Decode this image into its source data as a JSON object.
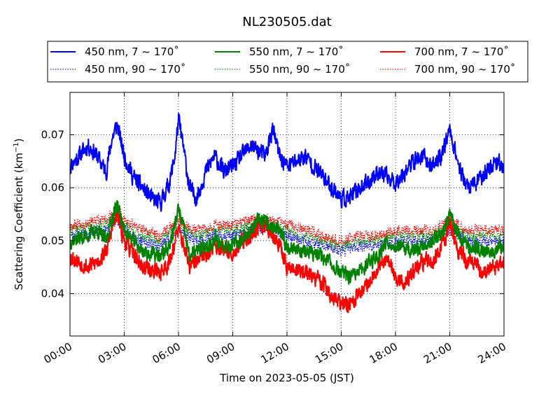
{
  "chart_data": {
    "type": "line",
    "title": "NL230505.dat",
    "xlabel": "Time on 2023-05-05 (JST)",
    "ylabel": "Scattering Coefficient (km",
    "ylabel_sup": "−1",
    "ylabel_close": ")",
    "xlim": [
      0,
      24
    ],
    "ylim": [
      0.032,
      0.078
    ],
    "x_ticks": [
      0,
      3,
      6,
      9,
      12,
      15,
      18,
      21,
      24
    ],
    "x_tick_labels": [
      "00:00",
      "03:00",
      "06:00",
      "09:00",
      "12:00",
      "15:00",
      "18:00",
      "21:00",
      "24:00"
    ],
    "y_ticks": [
      0.04,
      0.05,
      0.06,
      0.07
    ],
    "y_tick_labels": [
      "0.04",
      "0.05",
      "0.06",
      "0.07"
    ],
    "grid": true,
    "legend_placement": "top",
    "series": [
      {
        "name": "450 nm, 7 ~ 170˚",
        "color": "#0000ff",
        "style": "solid",
        "noise": 0.0018,
        "seed": 11,
        "x": [
          0,
          0.5,
          1,
          1.5,
          2,
          2.3,
          2.6,
          3,
          3.5,
          4,
          4.5,
          5,
          5.5,
          5.8,
          6,
          6.3,
          6.6,
          7,
          7.5,
          8,
          8.5,
          9,
          9.5,
          10,
          10.4,
          10.8,
          11.2,
          11.6,
          12,
          12.5,
          13,
          13.5,
          14,
          14.5,
          15,
          15.5,
          16,
          16.5,
          17,
          17.5,
          18,
          18.5,
          19,
          19.5,
          20,
          20.5,
          20.8,
          21,
          21.3,
          21.6,
          22,
          22.5,
          23,
          23.5,
          24
        ],
        "y": [
          0.064,
          0.066,
          0.068,
          0.066,
          0.063,
          0.069,
          0.072,
          0.066,
          0.062,
          0.06,
          0.058,
          0.057,
          0.061,
          0.066,
          0.073,
          0.067,
          0.06,
          0.058,
          0.063,
          0.066,
          0.063,
          0.064,
          0.066,
          0.068,
          0.067,
          0.066,
          0.071,
          0.066,
          0.064,
          0.065,
          0.066,
          0.064,
          0.062,
          0.06,
          0.058,
          0.058,
          0.06,
          0.061,
          0.063,
          0.062,
          0.061,
          0.063,
          0.065,
          0.066,
          0.064,
          0.066,
          0.069,
          0.071,
          0.067,
          0.063,
          0.06,
          0.061,
          0.063,
          0.065,
          0.064
        ]
      },
      {
        "name": "450 nm, 90 ~ 170˚",
        "color": "#0000ff",
        "style": "dotted",
        "noise": 0.0011,
        "seed": 23,
        "x": [
          0,
          2,
          2.6,
          3,
          4,
          5,
          6,
          7,
          8,
          9,
          10,
          11,
          12,
          13,
          14,
          15,
          16,
          17,
          18,
          19,
          20,
          21,
          22,
          23,
          24
        ],
        "y": [
          0.051,
          0.052,
          0.054,
          0.052,
          0.05,
          0.049,
          0.052,
          0.05,
          0.051,
          0.051,
          0.052,
          0.052,
          0.051,
          0.05,
          0.049,
          0.048,
          0.049,
          0.049,
          0.05,
          0.05,
          0.05,
          0.052,
          0.05,
          0.05,
          0.05
        ]
      },
      {
        "name": "550 nm, 7 ~ 170˚",
        "color": "#008000",
        "style": "solid",
        "noise": 0.0016,
        "seed": 37,
        "x": [
          0,
          1,
          1.5,
          2,
          2.3,
          2.6,
          3,
          4,
          5,
          5.5,
          5.8,
          6,
          6.3,
          6.6,
          7,
          8,
          9,
          10,
          10.5,
          11,
          11.5,
          12,
          13,
          14,
          15,
          15.5,
          16,
          16.5,
          17,
          17.5,
          18,
          19,
          20,
          20.7,
          21,
          21.5,
          22,
          23,
          24
        ],
        "y": [
          0.05,
          0.051,
          0.052,
          0.05,
          0.054,
          0.057,
          0.052,
          0.048,
          0.047,
          0.049,
          0.053,
          0.056,
          0.052,
          0.047,
          0.048,
          0.05,
          0.049,
          0.052,
          0.054,
          0.053,
          0.052,
          0.049,
          0.048,
          0.047,
          0.044,
          0.043,
          0.044,
          0.046,
          0.047,
          0.05,
          0.049,
          0.048,
          0.05,
          0.052,
          0.055,
          0.051,
          0.049,
          0.048,
          0.049
        ]
      },
      {
        "name": "550 nm, 90 ~ 170˚",
        "color": "#008000",
        "style": "dotted",
        "noise": 0.0011,
        "seed": 41,
        "x": [
          0,
          2,
          2.6,
          3,
          4,
          5,
          6,
          7,
          8,
          9,
          10,
          11,
          12,
          13,
          14,
          15,
          16,
          17,
          18,
          19,
          20,
          21,
          22,
          23,
          24
        ],
        "y": [
          0.052,
          0.053,
          0.055,
          0.053,
          0.051,
          0.05,
          0.053,
          0.051,
          0.052,
          0.052,
          0.053,
          0.053,
          0.052,
          0.051,
          0.05,
          0.049,
          0.05,
          0.05,
          0.051,
          0.051,
          0.051,
          0.053,
          0.051,
          0.051,
          0.051
        ]
      },
      {
        "name": "700 nm, 7 ~ 170˚",
        "color": "#ff0000",
        "style": "solid",
        "noise": 0.0018,
        "seed": 53,
        "x": [
          0,
          1,
          1.5,
          2,
          2.3,
          2.6,
          3,
          4,
          5,
          5.5,
          5.8,
          6,
          6.3,
          6.6,
          7,
          8,
          9,
          10,
          10.5,
          11,
          11.5,
          12,
          13,
          14,
          14.5,
          15,
          15.5,
          16,
          16.5,
          17,
          17.5,
          18,
          18.5,
          19,
          19.5,
          20,
          20.7,
          21,
          21.5,
          22,
          23,
          24
        ],
        "y": [
          0.047,
          0.045,
          0.046,
          0.048,
          0.052,
          0.055,
          0.05,
          0.045,
          0.044,
          0.046,
          0.05,
          0.052,
          0.049,
          0.045,
          0.046,
          0.049,
          0.048,
          0.051,
          0.053,
          0.052,
          0.05,
          0.045,
          0.044,
          0.042,
          0.039,
          0.038,
          0.038,
          0.04,
          0.042,
          0.045,
          0.047,
          0.043,
          0.042,
          0.044,
          0.046,
          0.046,
          0.05,
          0.053,
          0.048,
          0.046,
          0.044,
          0.046
        ]
      },
      {
        "name": "700 nm, 90 ~ 170˚",
        "color": "#ff0000",
        "style": "dotted",
        "noise": 0.0011,
        "seed": 67,
        "x": [
          0,
          2,
          2.6,
          3,
          4,
          5,
          6,
          7,
          8,
          9,
          10,
          11,
          12,
          13,
          14,
          15,
          16,
          17,
          18,
          19,
          20,
          21,
          22,
          23,
          24
        ],
        "y": [
          0.053,
          0.054,
          0.056,
          0.054,
          0.052,
          0.051,
          0.054,
          0.052,
          0.053,
          0.053,
          0.054,
          0.054,
          0.053,
          0.052,
          0.051,
          0.05,
          0.051,
          0.051,
          0.052,
          0.052,
          0.052,
          0.054,
          0.052,
          0.052,
          0.052
        ]
      }
    ]
  }
}
